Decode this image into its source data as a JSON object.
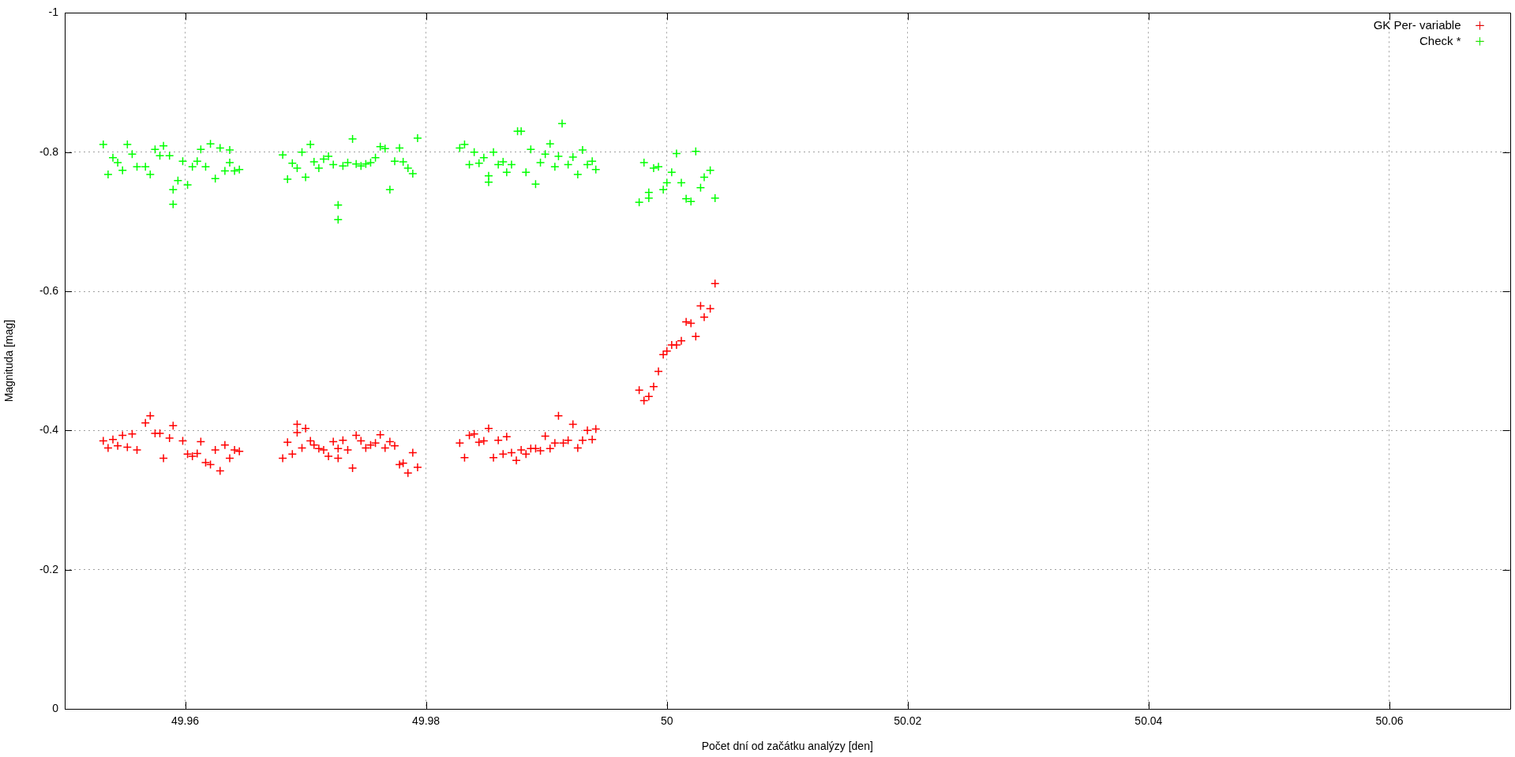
{
  "chart_data": {
    "type": "scatter",
    "xlabel": "Počet dní od začátku analýzy [den]",
    "ylabel": "Magnituda [mag]",
    "xlim": [
      49.95,
      50.07
    ],
    "xticks": [
      49.96,
      49.98,
      50,
      50.02,
      50.04,
      50.06
    ],
    "ylim": [
      0,
      -1
    ],
    "yticks": [
      -1,
      -0.8,
      -0.6,
      -0.4,
      -0.2,
      0
    ],
    "grid": true,
    "legend": "top right",
    "marker": "cross",
    "series": [
      {
        "name": "GK Per- variable",
        "color": "#ff0000",
        "x": [
          49.9532,
          49.9536,
          49.954,
          49.9544,
          49.9548,
          49.9552,
          49.9556,
          49.956,
          49.9567,
          49.9571,
          49.9575,
          49.9579,
          49.9582,
          49.9587,
          49.959,
          49.9598,
          49.9602,
          49.9606,
          49.961,
          49.9613,
          49.9617,
          49.9621,
          49.9625,
          49.9629,
          49.9633,
          49.9637,
          49.9641,
          49.9645,
          49.9681,
          49.9685,
          49.9689,
          49.9693,
          49.9693,
          49.9697,
          49.97,
          49.9704,
          49.9707,
          49.9711,
          49.9715,
          49.9719,
          49.9723,
          49.9727,
          49.9727,
          49.9731,
          49.9735,
          49.9739,
          49.9742,
          49.9746,
          49.975,
          49.9754,
          49.9758,
          49.9762,
          49.9766,
          49.977,
          49.9774,
          49.9778,
          49.9781,
          49.9785,
          49.9789,
          49.9793,
          49.9828,
          49.9832,
          49.9836,
          49.984,
          49.9844,
          49.9848,
          49.9852,
          49.9856,
          49.986,
          49.9864,
          49.9867,
          49.9871,
          49.9875,
          49.9879,
          49.9883,
          49.9887,
          49.9891,
          49.9895,
          49.9899,
          49.9903,
          49.9907,
          49.991,
          49.9914,
          49.9918,
          49.9922,
          49.9926,
          49.993,
          49.9934,
          49.9938,
          49.9941,
          49.9977,
          49.9981,
          49.9985,
          49.9989,
          49.9993,
          49.9997,
          50,
          50.0004,
          50.0008,
          50.0012,
          50.0016,
          50.002,
          50.0024,
          50.0028,
          50.0031,
          50.0036,
          50.004
        ],
        "values": [
          -0.385,
          -0.375,
          -0.387,
          -0.378,
          -0.393,
          -0.376,
          -0.395,
          -0.372,
          -0.411,
          -0.421,
          -0.396,
          -0.396,
          -0.36,
          -0.389,
          -0.407,
          -0.385,
          -0.366,
          -0.363,
          -0.367,
          -0.384,
          -0.354,
          -0.351,
          -0.372,
          -0.342,
          -0.379,
          -0.36,
          -0.372,
          -0.37,
          -0.36,
          -0.383,
          -0.366,
          -0.409,
          -0.397,
          -0.375,
          -0.403,
          -0.385,
          -0.379,
          -0.374,
          -0.372,
          -0.363,
          -0.384,
          -0.374,
          -0.36,
          -0.386,
          -0.372,
          -0.346,
          -0.393,
          -0.385,
          -0.375,
          -0.379,
          -0.382,
          -0.394,
          -0.375,
          -0.384,
          -0.378,
          -0.351,
          -0.353,
          -0.339,
          -0.368,
          -0.347,
          -0.382,
          -0.361,
          -0.393,
          -0.395,
          -0.383,
          -0.385,
          -0.403,
          -0.361,
          -0.386,
          -0.366,
          -0.391,
          -0.368,
          -0.357,
          -0.372,
          -0.366,
          -0.374,
          -0.374,
          -0.371,
          -0.392,
          -0.374,
          -0.382,
          -0.421,
          -0.382,
          -0.386,
          -0.409,
          -0.375,
          -0.386,
          -0.4,
          -0.387,
          -0.402,
          -0.458,
          -0.443,
          -0.449,
          -0.463,
          -0.485,
          -0.509,
          -0.514,
          -0.523,
          -0.523,
          -0.529,
          -0.556,
          -0.554,
          -0.535,
          -0.579,
          -0.563,
          -0.575,
          -0.611
        ]
      },
      {
        "name": "Check *",
        "color": "#00ff00",
        "x": [
          49.9532,
          49.9536,
          49.954,
          49.9544,
          49.9548,
          49.9552,
          49.9556,
          49.956,
          49.9567,
          49.9571,
          49.9575,
          49.9579,
          49.9582,
          49.9587,
          49.959,
          49.959,
          49.9594,
          49.9598,
          49.9602,
          49.9606,
          49.961,
          49.9613,
          49.9617,
          49.9621,
          49.9625,
          49.9629,
          49.9633,
          49.9637,
          49.9637,
          49.9641,
          49.9645,
          49.9681,
          49.9685,
          49.9689,
          49.9693,
          49.9697,
          49.97,
          49.9704,
          49.9707,
          49.9711,
          49.9715,
          49.9719,
          49.9723,
          49.9727,
          49.9727,
          49.9731,
          49.9735,
          49.9739,
          49.9742,
          49.9746,
          49.975,
          49.9754,
          49.9758,
          49.9762,
          49.9766,
          49.977,
          49.9774,
          49.9778,
          49.9781,
          49.9785,
          49.9789,
          49.9793,
          49.9828,
          49.9832,
          49.9836,
          49.984,
          49.9844,
          49.9848,
          49.9852,
          49.9852,
          49.9856,
          49.986,
          49.9864,
          49.9867,
          49.9871,
          49.9876,
          49.9879,
          49.9883,
          49.9887,
          49.9891,
          49.9895,
          49.9899,
          49.9903,
          49.9907,
          49.991,
          49.9913,
          49.9918,
          49.9922,
          49.9926,
          49.993,
          49.9934,
          49.9938,
          49.9941,
          49.9977,
          49.9981,
          49.9985,
          49.9985,
          49.9989,
          49.9993,
          49.9997,
          50,
          50.0004,
          50.0008,
          50.0012,
          50.0016,
          50.002,
          50.0024,
          50.0028,
          50.0031,
          50.0036,
          50.004
        ],
        "values": [
          -0.811,
          -0.768,
          -0.792,
          -0.785,
          -0.774,
          -0.811,
          -0.797,
          -0.779,
          -0.779,
          -0.768,
          -0.804,
          -0.795,
          -0.809,
          -0.795,
          -0.746,
          -0.725,
          -0.759,
          -0.787,
          -0.753,
          -0.779,
          -0.787,
          -0.804,
          -0.779,
          -0.812,
          -0.762,
          -0.806,
          -0.773,
          -0.803,
          -0.785,
          -0.773,
          -0.775,
          -0.796,
          -0.761,
          -0.784,
          -0.777,
          -0.8,
          -0.764,
          -0.811,
          -0.786,
          -0.777,
          -0.79,
          -0.794,
          -0.782,
          -0.724,
          -0.703,
          -0.78,
          -0.785,
          -0.819,
          -0.783,
          -0.78,
          -0.783,
          -0.785,
          -0.792,
          -0.808,
          -0.805,
          -0.746,
          -0.787,
          -0.806,
          -0.786,
          -0.777,
          -0.769,
          -0.82,
          -0.806,
          -0.811,
          -0.782,
          -0.8,
          -0.784,
          -0.792,
          -0.766,
          -0.757,
          -0.8,
          -0.782,
          -0.786,
          -0.771,
          -0.782,
          -0.83,
          -0.83,
          -0.771,
          -0.804,
          -0.754,
          -0.785,
          -0.797,
          -0.812,
          -0.779,
          -0.794,
          -0.841,
          -0.782,
          -0.793,
          -0.768,
          -0.803,
          -0.782,
          -0.787,
          -0.775,
          -0.728,
          -0.785,
          -0.742,
          -0.734,
          -0.777,
          -0.779,
          -0.746,
          -0.756,
          -0.771,
          -0.798,
          -0.756,
          -0.733,
          -0.729,
          -0.801,
          -0.749,
          -0.764,
          -0.774,
          -0.734
        ]
      }
    ]
  }
}
